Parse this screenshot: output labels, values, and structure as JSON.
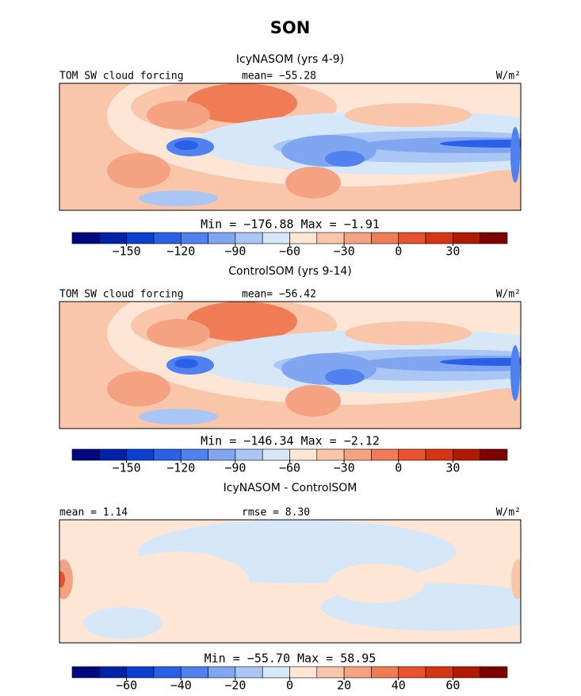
{
  "title": "SON",
  "palette": [
    "#00087e",
    "#0022a8",
    "#0a3fcf",
    "#2a60e6",
    "#4f82ee",
    "#80a6f2",
    "#aac6f5",
    "#d6e8f8",
    "#fde6d6",
    "#f9c6aa",
    "#f5a282",
    "#f07c56",
    "#e8522c",
    "#d63412",
    "#b01a02",
    "#7e0000"
  ],
  "panels": [
    {
      "subtitle": "IcyNASOM (yrs 4-9)",
      "top_left": "TOM SW cloud forcing",
      "top_center": "mean= −55.28",
      "top_right": "W/m²",
      "minmax": "Min = −176.88 Max =  −1.91",
      "cbar_lim": [
        -180,
        60
      ],
      "cbar_ticks": [
        {
          "value": -150,
          "label": "−150"
        },
        {
          "value": -120,
          "label": "−120"
        },
        {
          "value": -90,
          "label": "−90"
        },
        {
          "value": -60,
          "label": "−60"
        },
        {
          "value": -30,
          "label": "−30"
        },
        0,
        30
      ]
    },
    {
      "subtitle": "ControlSOM (yrs 9-14)",
      "top_left": "TOM SW cloud forcing",
      "top_center": "mean= −56.42",
      "top_right": "W/m²",
      "minmax": "Min = −146.34 Max =  −2.12",
      "cbar_lim": [
        -180,
        60
      ],
      "cbar_ticks": [
        {
          "value": -150,
          "label": "−150"
        },
        {
          "value": -120,
          "label": "−120"
        },
        {
          "value": -90,
          "label": "−90"
        },
        {
          "value": -60,
          "label": "−60"
        },
        {
          "value": -30,
          "label": "−30"
        },
        0,
        30
      ]
    },
    {
      "subtitle": "IcyNASOM - ControlSOM",
      "top_left": "mean =   1.14",
      "top_center": "rmse =   8.30",
      "top_right": "W/m²",
      "minmax": "Min = −55.70 Max =  58.95",
      "cbar_lim": [
        -80,
        80
      ],
      "cbar_ticks": [
        {
          "value": -60,
          "label": "−60"
        },
        {
          "value": -40,
          "label": "−40"
        },
        {
          "value": -20,
          "label": "−20"
        },
        0,
        20,
        40,
        60
      ]
    }
  ]
}
